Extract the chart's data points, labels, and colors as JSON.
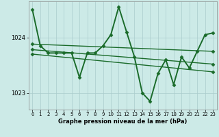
{
  "background_color": "#cceae7",
  "plot_bg_color": "#cceae7",
  "grid_color": "#aacccc",
  "line_color": "#1a6b2a",
  "xlabel": "Graphe pression niveau de la mer (hPa)",
  "xlim": [
    -0.5,
    23.5
  ],
  "ylim": [
    1022.7,
    1024.65
  ],
  "yticks": [
    1023,
    1024
  ],
  "xticks": [
    0,
    1,
    2,
    3,
    4,
    5,
    6,
    7,
    8,
    9,
    10,
    11,
    12,
    13,
    14,
    15,
    16,
    17,
    18,
    19,
    20,
    21,
    22,
    23
  ],
  "series": [
    {
      "x": [
        0,
        1,
        2,
        3,
        4,
        5,
        6,
        7,
        8,
        9,
        10,
        11,
        12,
        13,
        14,
        15,
        16,
        17,
        18,
        19,
        20,
        21,
        22,
        23
      ],
      "y": [
        1024.5,
        1023.85,
        1023.72,
        1023.72,
        1023.72,
        1023.72,
        1023.28,
        1023.72,
        1023.72,
        1023.85,
        1024.05,
        1024.55,
        1024.1,
        1023.65,
        1023.0,
        1022.85,
        1023.35,
        1023.6,
        1023.15,
        1023.65,
        1023.45,
        1023.75,
        1024.05,
        1024.08
      ],
      "marker": "D",
      "markersize": 2.5,
      "linewidth": 1.4
    },
    {
      "x": [
        0,
        23
      ],
      "y": [
        1023.88,
        1023.75
      ],
      "marker": "D",
      "markersize": 2.5,
      "linewidth": 1.0
    },
    {
      "x": [
        0,
        23
      ],
      "y": [
        1023.78,
        1023.52
      ],
      "marker": "D",
      "markersize": 2.5,
      "linewidth": 1.0
    },
    {
      "x": [
        0,
        23
      ],
      "y": [
        1023.7,
        1023.38
      ],
      "marker": "D",
      "markersize": 2.5,
      "linewidth": 1.0
    }
  ]
}
